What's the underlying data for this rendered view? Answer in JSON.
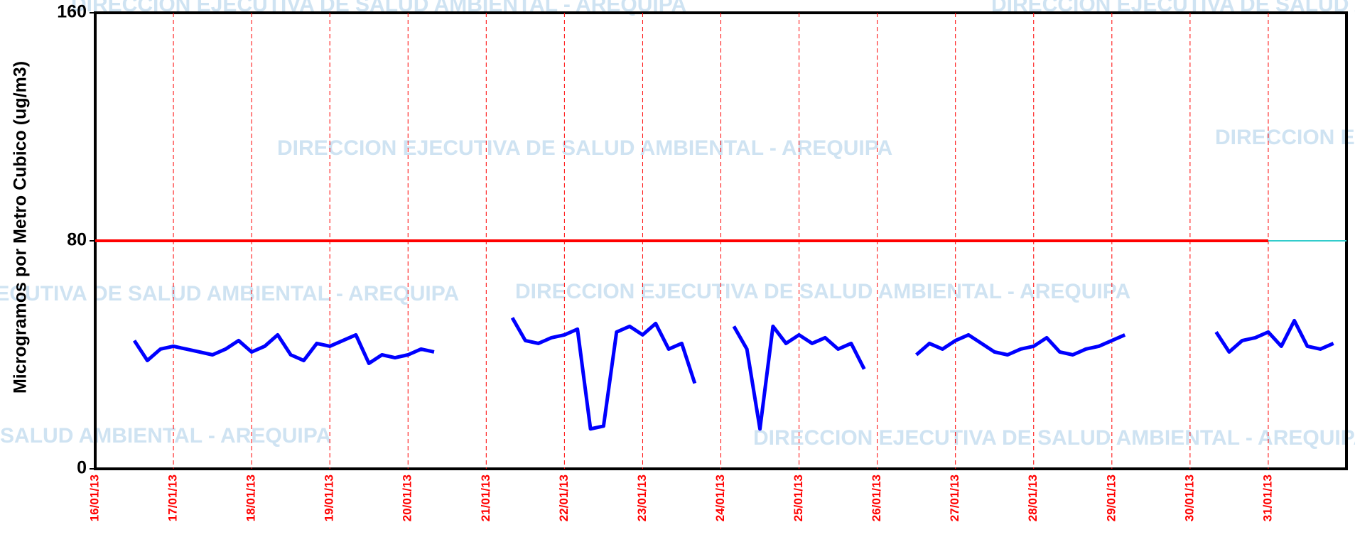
{
  "chart_data": {
    "type": "line",
    "y_label": "Microgramos por Metro Cubico (ug/m3)",
    "watermark": "DIRECCION EJECUTIVA DE SALUD AMBIENTAL - AREQUIPA",
    "categories": [
      "16/01/13",
      null,
      null,
      null,
      null,
      null,
      "17/01/13",
      null,
      null,
      null,
      null,
      null,
      "18/01/13",
      null,
      null,
      null,
      null,
      null,
      "19/01/13",
      null,
      null,
      null,
      null,
      null,
      "20/01/13",
      null,
      null,
      null,
      null,
      null,
      "21/01/13",
      null,
      null,
      null,
      null,
      null,
      "22/01/13",
      null,
      null,
      null,
      null,
      null,
      "23/01/13",
      null,
      null,
      null,
      null,
      null,
      "24/01/13",
      null,
      null,
      null,
      null,
      null,
      "25/01/13",
      null,
      null,
      null,
      null,
      null,
      "26/01/13",
      null,
      null,
      null,
      null,
      null,
      "27/01/13",
      null,
      null,
      null,
      null,
      null,
      "28/01/13",
      null,
      null,
      null,
      null,
      null,
      "29/01/13",
      null,
      null,
      null,
      null,
      null,
      "30/01/13",
      null,
      null,
      null,
      null,
      null,
      "31/01/13",
      null,
      null,
      null,
      null,
      null
    ],
    "series": [
      {
        "color": "#0000ff",
        "values": [
          null,
          null,
          null,
          45,
          38,
          42,
          43,
          42,
          41,
          40,
          42,
          45,
          41,
          43,
          47,
          40,
          38,
          44,
          43,
          45,
          47,
          37,
          40,
          39,
          40,
          42,
          41,
          null,
          null,
          null,
          null,
          null,
          53,
          45,
          44,
          46,
          47,
          49,
          14,
          15,
          48,
          50,
          47,
          51,
          42,
          44,
          30,
          null,
          null,
          50,
          42,
          14,
          50,
          44,
          47,
          44,
          46,
          42,
          44,
          35,
          null,
          null,
          null,
          40,
          44,
          42,
          45,
          47,
          44,
          41,
          40,
          42,
          43,
          46,
          41,
          40,
          42,
          43,
          45,
          47,
          null,
          null,
          null,
          null,
          null,
          null,
          48,
          41,
          45,
          46,
          48,
          43,
          52,
          43,
          42,
          44
        ]
      }
    ],
    "reference_lines": [
      {
        "value": 80,
        "color": "#ff0000"
      }
    ],
    "ylim": [
      0,
      160
    ],
    "yticks": [
      0,
      80,
      160
    ],
    "grid": true,
    "grid_color": "#ff0000",
    "tick_label_color": "#ff0000"
  }
}
